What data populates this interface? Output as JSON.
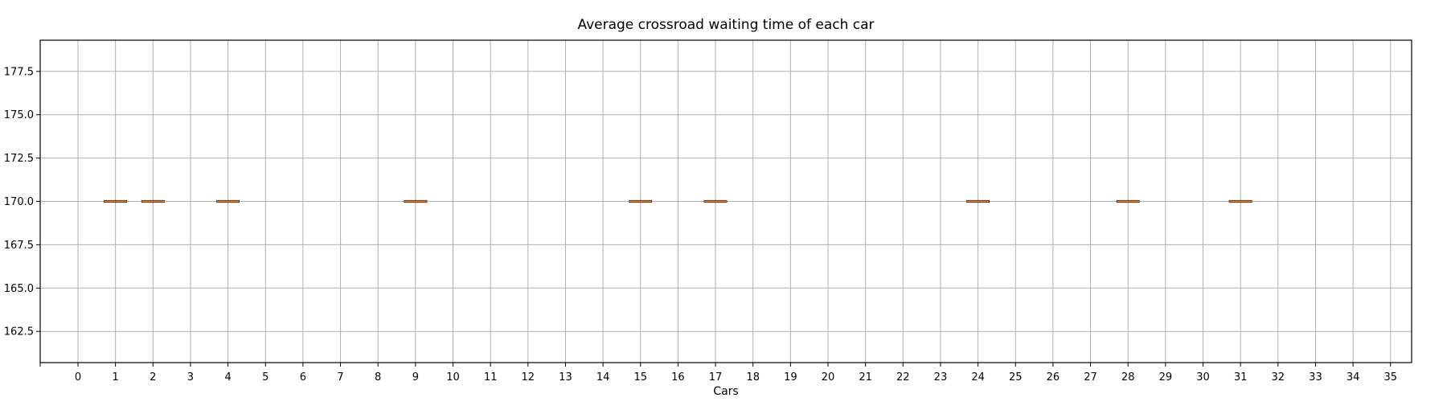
{
  "chart_data": {
    "type": "box",
    "title": "Average crossroad waiting time of each car",
    "xlabel": "Cars",
    "ylabel": "",
    "ylim": [
      160.7,
      179.3
    ],
    "y_ticks": [
      162.5,
      165.0,
      167.5,
      170.0,
      172.5,
      175.0,
      177.5
    ],
    "y_tick_labels": [
      "162.5",
      "165.0",
      "167.5",
      "170.0",
      "172.5",
      "175.0",
      "177.5"
    ],
    "categories": [
      "0",
      "1",
      "2",
      "3",
      "4",
      "5",
      "6",
      "7",
      "8",
      "9",
      "10",
      "11",
      "12",
      "13",
      "14",
      "15",
      "16",
      "17",
      "18",
      "19",
      "20",
      "21",
      "22",
      "23",
      "24",
      "25",
      "26",
      "27",
      "28",
      "29",
      "30",
      "31",
      "32",
      "33",
      "34",
      "35"
    ],
    "boxes": [
      {
        "car": "1",
        "median": 170.0
      },
      {
        "car": "2",
        "median": 170.0
      },
      {
        "car": "4",
        "median": 170.0
      },
      {
        "car": "9",
        "median": 170.0
      },
      {
        "car": "15",
        "median": 170.0
      },
      {
        "car": "17",
        "median": 170.0
      },
      {
        "car": "24",
        "median": 170.0
      },
      {
        "car": "28",
        "median": 170.0
      },
      {
        "car": "31",
        "median": 170.0
      }
    ],
    "grid": true,
    "colors": {
      "median": "#ff7f0e",
      "box": "#000000",
      "grid": "#b0b0b0"
    }
  }
}
